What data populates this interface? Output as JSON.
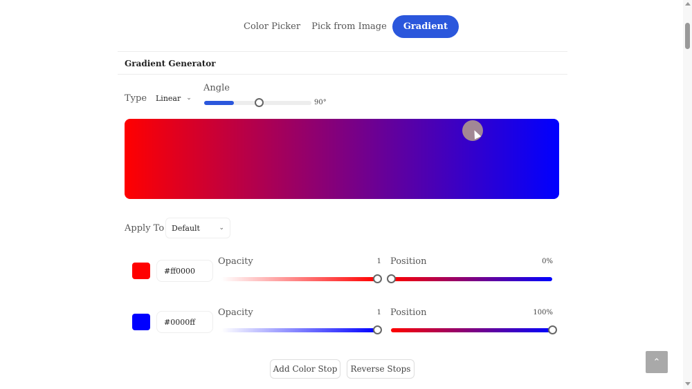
{
  "tabs": [
    {
      "label": "Color Picker",
      "active": false
    },
    {
      "label": "Pick from Image",
      "active": false
    },
    {
      "label": "Gradient",
      "active": true
    }
  ],
  "section": {
    "title": "Gradient Generator"
  },
  "controls": {
    "type_label": "Type",
    "type_value": "Linear",
    "angle_label": "Angle",
    "angle_display": "90°",
    "angle_fraction": 0.25,
    "apply_label": "Apply To",
    "apply_value": "Default"
  },
  "preview": {
    "from": "#ff0000",
    "to": "#0000ff",
    "angle_deg": 90
  },
  "stops": [
    {
      "hex": "#ff0000",
      "opacity_label": "Opacity",
      "opacity_value": "1",
      "position_label": "Position",
      "position_value": "0%",
      "opacity_fraction": 1,
      "position_fraction": 0
    },
    {
      "hex": "#0000ff",
      "opacity_label": "Opacity",
      "opacity_value": "1",
      "position_label": "Position",
      "position_value": "100%",
      "opacity_fraction": 1,
      "position_fraction": 1
    }
  ],
  "buttons": {
    "add": "Add Color Stop",
    "reverse": "Reverse Stops"
  },
  "icons": {
    "scroll_top": "chevron-up-icon",
    "cursor": "pointer-cursor-icon"
  }
}
